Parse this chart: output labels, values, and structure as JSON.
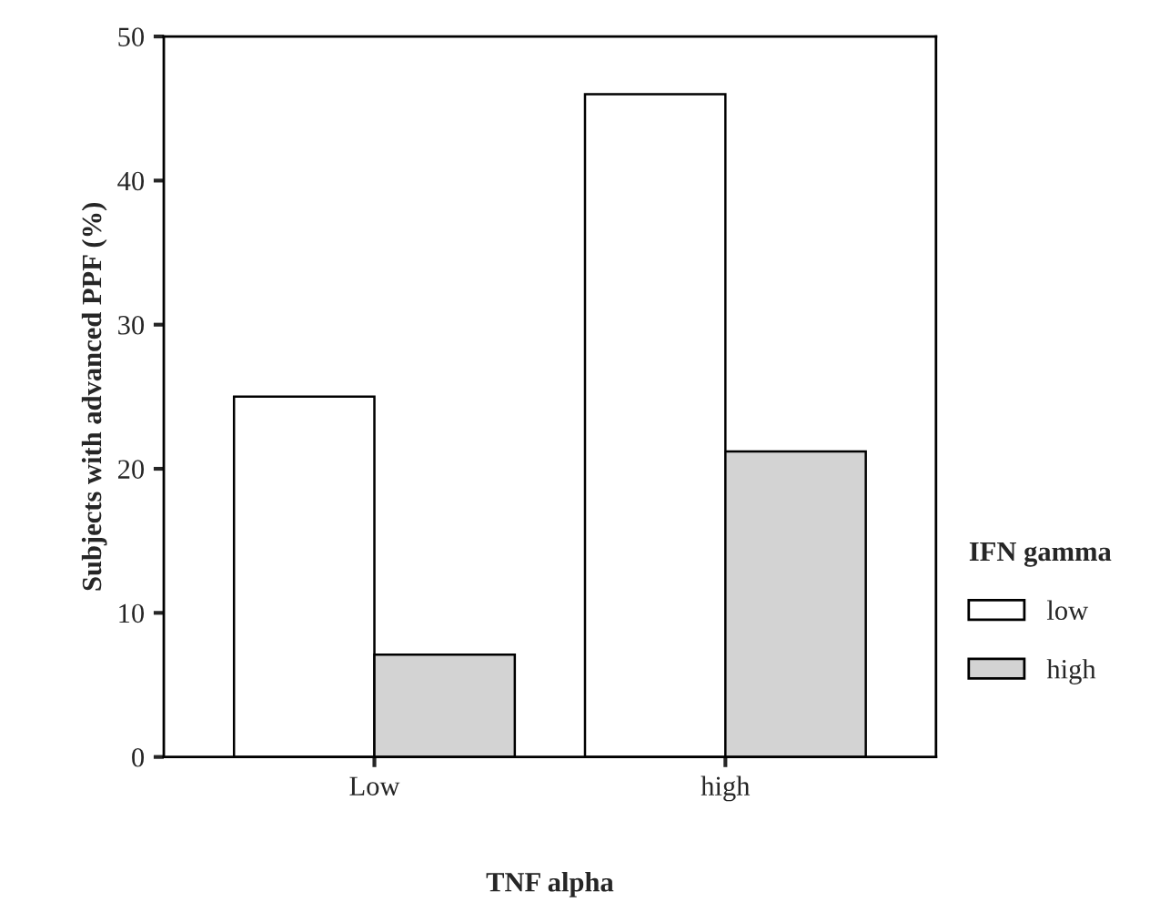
{
  "chart_data": {
    "type": "bar",
    "xlabel": "TNF alpha",
    "ylabel": "Subjects with advanced PPF (%)",
    "legend_title": "IFN gamma",
    "categories": [
      "Low",
      "high"
    ],
    "series": [
      {
        "name": "low",
        "color": "#ffffff",
        "values": [
          25,
          46
        ]
      },
      {
        "name": "high",
        "color": "#d3d3d3",
        "values": [
          7.1,
          21.2
        ]
      }
    ],
    "ylim": [
      0,
      50
    ],
    "yticks": [
      0,
      10,
      20,
      30,
      40,
      50
    ],
    "grid": false,
    "legend": "right"
  }
}
